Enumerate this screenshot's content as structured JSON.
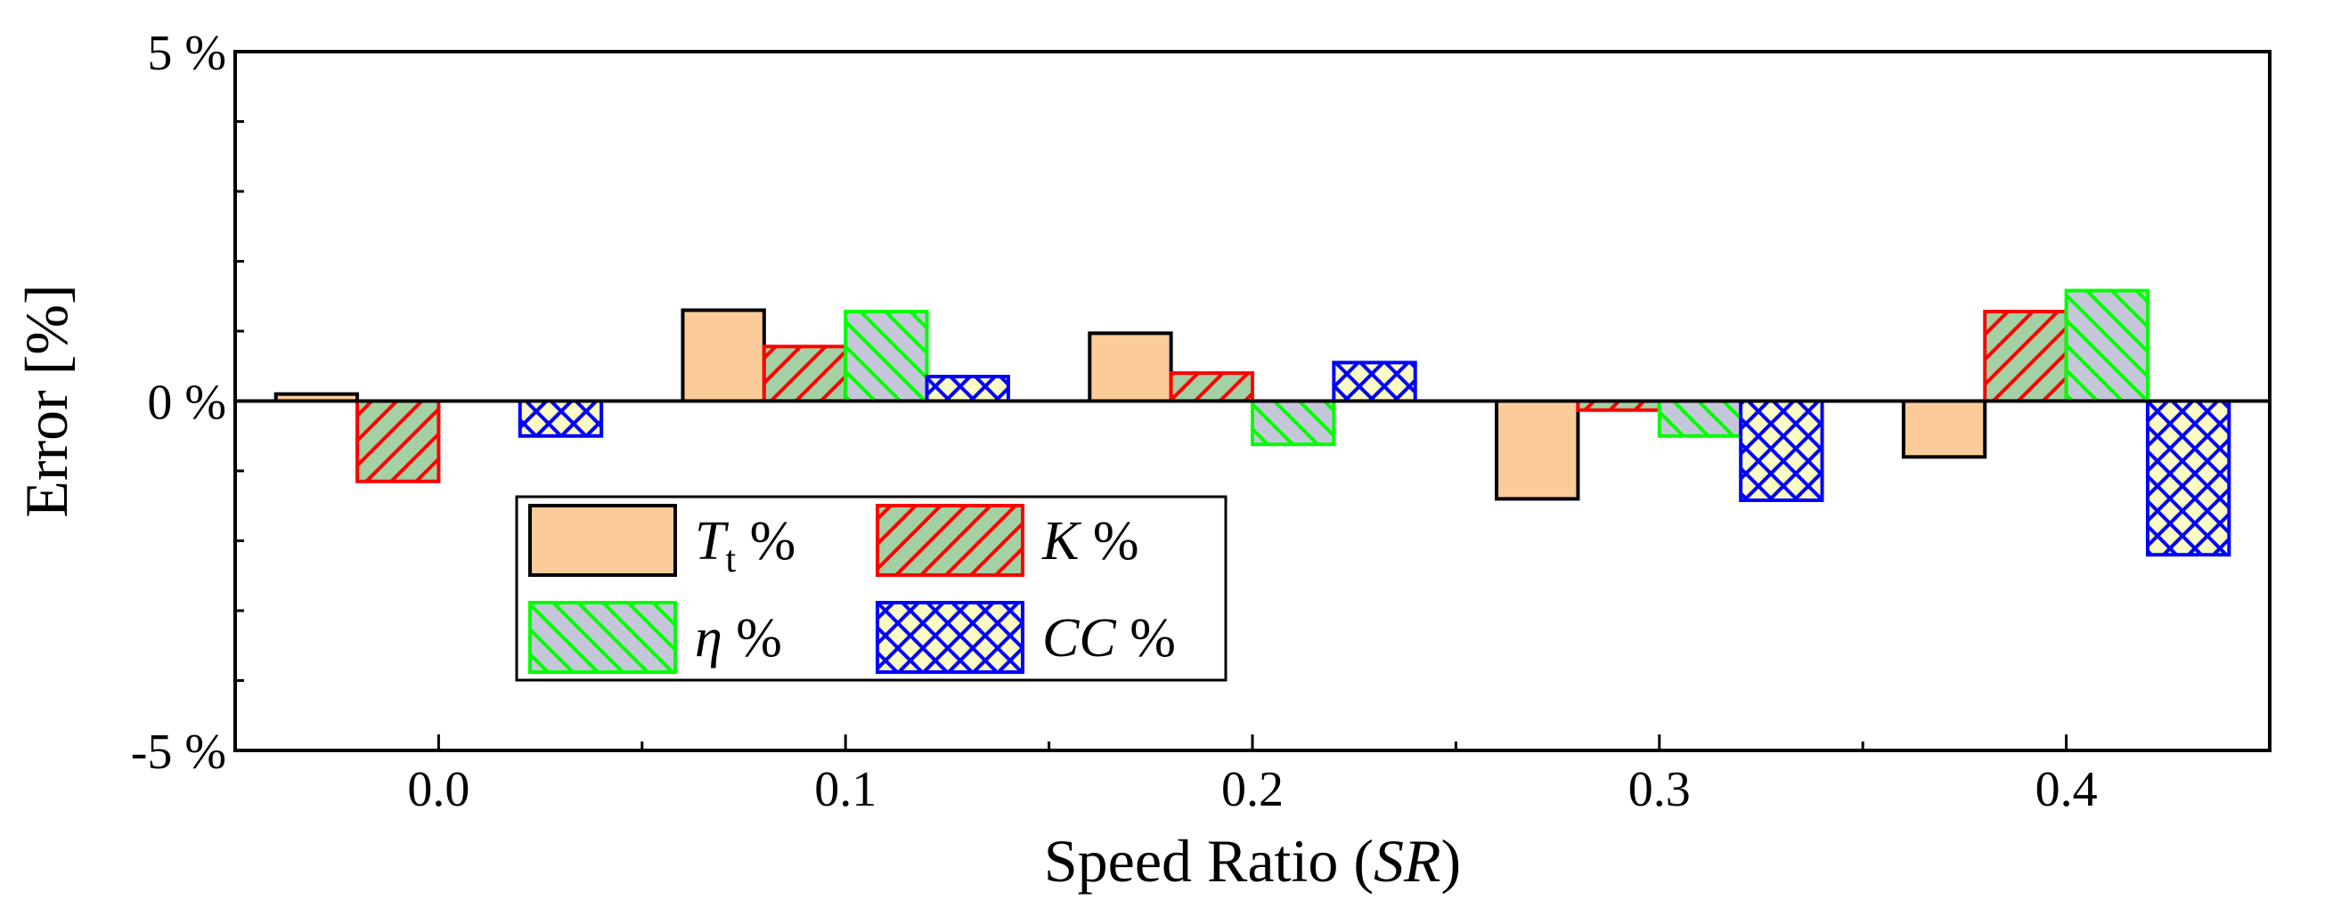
{
  "chart_data": {
    "type": "bar",
    "xlabel_prefix": "Speed Ratio (",
    "xlabel_var": "SR",
    "xlabel_suffix": ")",
    "ylabel": "Error [%]",
    "categories": [
      "0.0",
      "0.1",
      "0.2",
      "0.3",
      "0.4"
    ],
    "x_values": [
      0.0,
      0.1,
      0.2,
      0.3,
      0.4
    ],
    "xlim": [
      -0.05,
      0.45
    ],
    "ylim": [
      -5,
      5
    ],
    "y_tick_labels": [
      "5 %",
      "0 %",
      "-5 %"
    ],
    "y_tick_values": [
      5,
      0,
      -5
    ],
    "grid": false,
    "zero_line": true,
    "legend_placement": "lower-left",
    "series": [
      {
        "name": "Tt %",
        "legend_main": "T",
        "legend_sub": "t",
        "legend_suffix": " %",
        "stroke": "#000000",
        "fill": "#fccb9a",
        "pattern": "none",
        "pattern_color": "#000000",
        "values": [
          0.1,
          1.3,
          0.97,
          -1.4,
          -0.8
        ]
      },
      {
        "name": "K %",
        "legend_main": "K",
        "legend_sub": "",
        "legend_suffix": " %",
        "stroke": "#ff0000",
        "fill": "#a4d1a4",
        "pattern": "forward",
        "pattern_color": "#ff0000",
        "values": [
          -1.15,
          0.78,
          0.4,
          -0.13,
          1.28
        ]
      },
      {
        "name": "η %",
        "legend_main": "η",
        "legend_sub": "",
        "legend_suffix": " %",
        "stroke": "#00ff00",
        "fill": "#c6c6da",
        "pattern": "backward",
        "pattern_color": "#00ff00",
        "values": [
          0.0,
          1.28,
          -0.62,
          -0.5,
          1.58
        ]
      },
      {
        "name": "CC %",
        "legend_main": "CC",
        "legend_sub": "",
        "legend_suffix": " %",
        "stroke": "#0000ff",
        "fill": "#fbfbc4",
        "pattern": "cross",
        "pattern_color": "#0000ff",
        "values": [
          -0.5,
          0.35,
          0.55,
          -1.42,
          -2.2
        ]
      }
    ]
  }
}
